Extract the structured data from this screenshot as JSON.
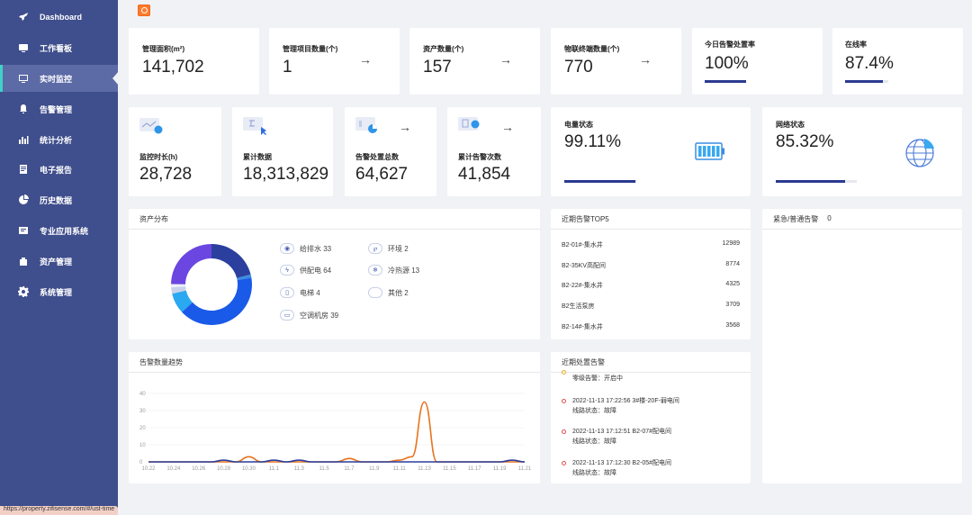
{
  "sidebar": {
    "items": [
      {
        "label": "Dashboard",
        "icon": "rocket-icon"
      },
      {
        "label": "工作看板",
        "icon": "monitor-icon"
      },
      {
        "label": "实时监控",
        "icon": "screen-icon"
      },
      {
        "label": "告警管理",
        "icon": "bell-icon"
      },
      {
        "label": "统计分析",
        "icon": "bar-chart-icon"
      },
      {
        "label": "电子报告",
        "icon": "report-icon"
      },
      {
        "label": "历史数据",
        "icon": "pie-icon"
      },
      {
        "label": "专业应用系统",
        "icon": "app-icon"
      },
      {
        "label": "资产管理",
        "icon": "asset-icon"
      },
      {
        "label": "系统管理",
        "icon": "gear-icon"
      }
    ],
    "active_index": 2
  },
  "stats_row1": [
    {
      "label": "管理面积(m²)",
      "value": "141,702"
    },
    {
      "label": "管理项目数量(个)",
      "value": "1",
      "arrow": "→"
    },
    {
      "label": "资产数量(个)",
      "value": "157",
      "arrow": "→"
    },
    {
      "label": "物联终端数量(个)",
      "value": "770",
      "arrow": "→"
    },
    {
      "label": "今日告警处置率",
      "value": "100%",
      "progress": 1.0
    },
    {
      "label": "在线率",
      "value": "87.4%",
      "progress": 0.874
    }
  ],
  "stats_row2": [
    {
      "label": "监控时长(h)",
      "value": "28,728"
    },
    {
      "label": "累计数据",
      "value": "18,313,829"
    },
    {
      "label": "告警处置总数",
      "value": "64,627",
      "arrow": "→"
    },
    {
      "label": "累计告警次数",
      "value": "41,854",
      "arrow": "→"
    }
  ],
  "power": {
    "label": "电量状态",
    "value": "99.11%",
    "progress": 0.9911
  },
  "network": {
    "label": "网络状态",
    "value": "85.32%",
    "progress": 0.8532
  },
  "asset_dist": {
    "title": "资产分布",
    "legend": [
      {
        "name": "给排水 33",
        "icon": "◉",
        "value": 33
      },
      {
        "name": "环境 2",
        "icon": "℘",
        "value": 2
      },
      {
        "name": "供配电 64",
        "icon": "ϟ",
        "value": 64
      },
      {
        "name": "冷热源 13",
        "icon": "❄",
        "value": 13
      },
      {
        "name": "电梯 4",
        "icon": "▯",
        "value": 4
      },
      {
        "name": "其他 2",
        "icon": "",
        "value": 2
      },
      {
        "name": "空调机房 39",
        "icon": "▭",
        "value": 39
      }
    ],
    "colors": [
      "#2b3f9e",
      "#3a8de0",
      "#1a5ae8",
      "#2aa8f0",
      "#c9d2ea",
      "#eef1f8",
      "#6b46e0"
    ]
  },
  "top5": {
    "title": "近期告警TOP5",
    "rows": [
      {
        "name": "B2-01#-集水井",
        "count": "12989"
      },
      {
        "name": "B2-35KV高配间",
        "count": "8774"
      },
      {
        "name": "B2-22#-集水井",
        "count": "4325"
      },
      {
        "name": "B2生活泵房",
        "count": "3709"
      },
      {
        "name": "B2-14#-集水井",
        "count": "3568"
      }
    ]
  },
  "urgent": {
    "title": "紧急/普通告警",
    "count": "0"
  },
  "trend": {
    "title": "告警数量趋势"
  },
  "recent": {
    "title": "近期处置告警",
    "items": [
      {
        "line1": "零级告警：开启中",
        "line2": "",
        "color": "yellow"
      },
      {
        "line1": "2022-11-13 17:22:56 3#楼-20F-弱电间",
        "line2": "线路状态：故障",
        "color": "red"
      },
      {
        "line1": "2022-11-13 17:12:51 B2-07#配电间",
        "line2": "线路状态：故障",
        "color": "red"
      },
      {
        "line1": "2022-11-13 17:12:30 B2-05#配电间",
        "line2": "线路状态：故障",
        "color": "red"
      }
    ]
  },
  "status_url": "https://property.zifisense.com/#/ust-time",
  "chart_data": {
    "type": "line",
    "title": "告警数量趋势",
    "xlabel": "",
    "ylabel": "",
    "ylim": [
      0,
      40
    ],
    "yticks": [
      "0",
      "10",
      "20",
      "30",
      "40"
    ],
    "x": [
      "10.22",
      "10.23",
      "10.24",
      "10.25",
      "10.26",
      "10.27",
      "10.28",
      "10.29",
      "10.30",
      "10.31",
      "11.1",
      "11.2",
      "11.3",
      "11.4",
      "11.5",
      "11.6",
      "11.7",
      "11.8",
      "11.9",
      "11.10",
      "11.11",
      "11.12",
      "11.13",
      "11.14",
      "11.15",
      "11.16",
      "11.17",
      "11.18",
      "11.19",
      "11.20",
      "11.21"
    ],
    "xticks": [
      "10.22",
      "10.24",
      "10.26",
      "10.28",
      "10.30",
      "11.1",
      "11.3",
      "11.5",
      "11.7",
      "11.9",
      "11.11",
      "11.13",
      "11.15",
      "11.17",
      "11.19",
      "11.21"
    ],
    "series": [
      {
        "color": "#e8731e",
        "values": [
          0,
          0,
          0,
          0,
          0,
          0,
          0,
          0,
          3,
          0,
          0,
          0,
          0,
          0,
          0,
          0,
          2,
          0,
          0,
          0,
          1,
          3,
          35,
          0,
          0,
          0,
          0,
          0,
          0,
          0,
          0
        ]
      },
      {
        "color": "#2b3f9e",
        "values": [
          0,
          0,
          0,
          0,
          0,
          0,
          1,
          0,
          0,
          0,
          1,
          0,
          1,
          0,
          0,
          0,
          0,
          0,
          0,
          0,
          0,
          0,
          0,
          0,
          0,
          0,
          0,
          0,
          0,
          1,
          0
        ]
      }
    ]
  }
}
